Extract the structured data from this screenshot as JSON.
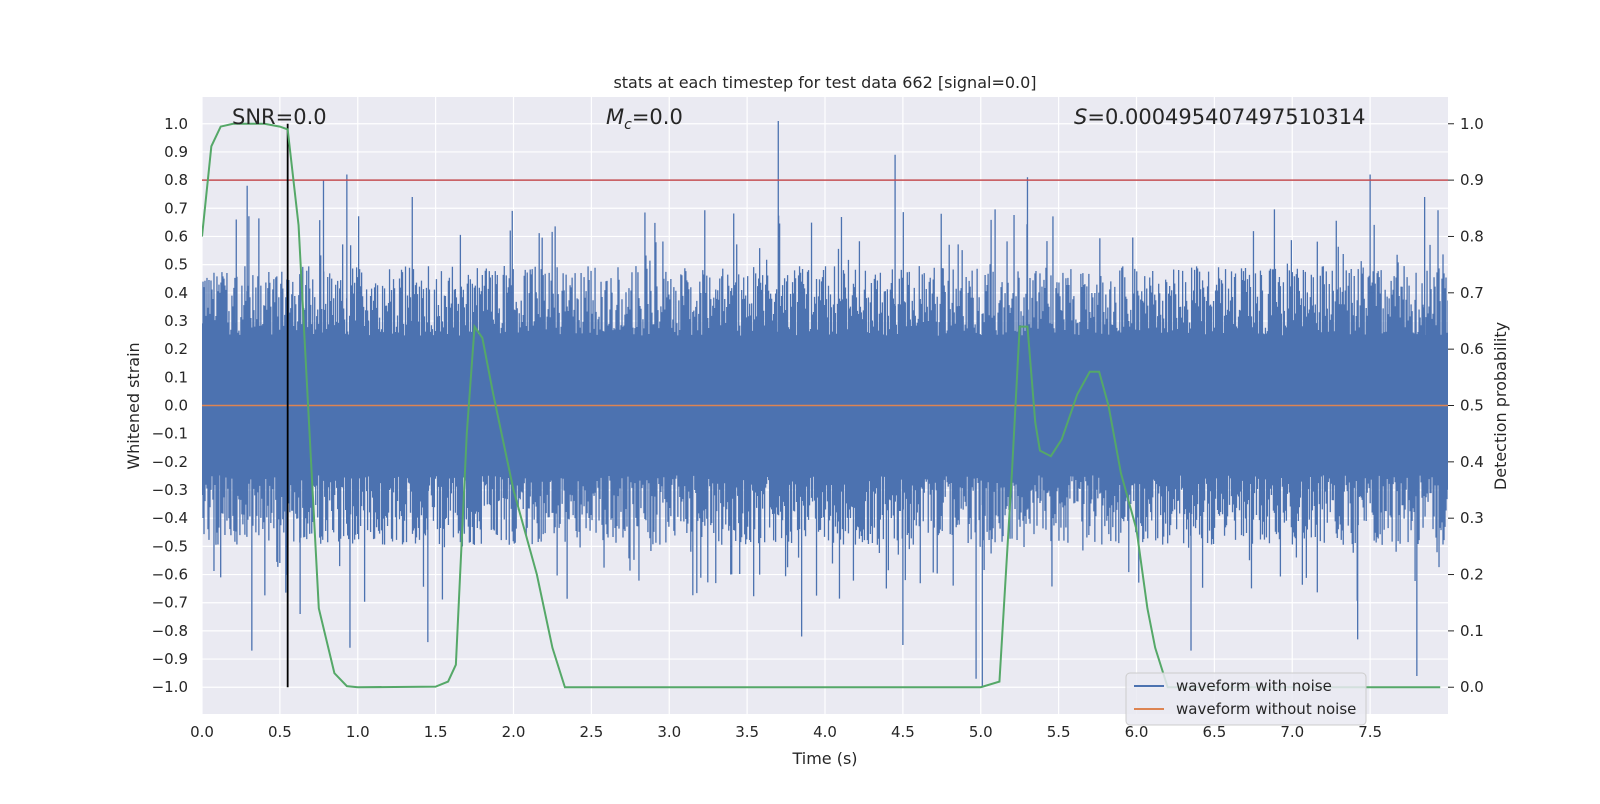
{
  "chart_data": {
    "type": "line",
    "title": "stats at each timestep for test data 662 [signal=0.0]",
    "xlabel": "Time (s)",
    "ylabel": "Whitened strain",
    "y2label": "Detection probability",
    "xlim": [
      0.0,
      8.0
    ],
    "ylim": [
      -1.095,
      1.095
    ],
    "y2lim": [
      -0.0475,
      1.0475
    ],
    "grid": true,
    "xticks": [
      0.0,
      0.5,
      1.0,
      1.5,
      2.0,
      2.5,
      3.0,
      3.5,
      4.0,
      4.5,
      5.0,
      5.5,
      6.0,
      6.5,
      7.0,
      7.5
    ],
    "xtick_labels": [
      "0.0",
      "0.5",
      "1.0",
      "1.5",
      "2.0",
      "2.5",
      "3.0",
      "3.5",
      "4.0",
      "4.5",
      "5.0",
      "5.5",
      "6.0",
      "6.5",
      "7.0",
      "7.5"
    ],
    "yticks": [
      1.0,
      0.9,
      0.8,
      0.7,
      0.6,
      0.5,
      0.4,
      0.3,
      0.2,
      0.1,
      0.0,
      -0.1,
      -0.2,
      -0.3,
      -0.4,
      -0.5,
      -0.6,
      -0.7,
      -0.8,
      -0.9,
      -1.0
    ],
    "ytick_labels": [
      "1.0",
      "0.9",
      "0.8",
      "0.7",
      "0.6",
      "0.5",
      "0.4",
      "0.3",
      "0.2",
      "0.1",
      "0.0",
      "−0.1",
      "−0.2",
      "−0.3",
      "−0.4",
      "−0.5",
      "−0.6",
      "−0.7",
      "−0.8",
      "−0.9",
      "−1.0"
    ],
    "y2ticks": [
      1.0,
      0.9,
      0.8,
      0.7,
      0.6,
      0.5,
      0.4,
      0.3,
      0.2,
      0.1,
      0.0
    ],
    "y2tick_labels": [
      "1.0",
      "0.9",
      "0.8",
      "0.7",
      "0.6",
      "0.5",
      "0.4",
      "0.3",
      "0.2",
      "0.1",
      "0.0"
    ],
    "annotations": {
      "snr": "SNR=0.0",
      "mc_symbol": "M",
      "mc_sub": "c",
      "mc_value": "=0.0",
      "s_symbol": "S",
      "s_value": "=0.000495407497510314"
    },
    "threshold_line": {
      "axis": "y2",
      "value": 0.9,
      "color": "#c44e52"
    },
    "marker_line": {
      "x": 0.55,
      "y_from": -1.0,
      "y_to": 1.0,
      "color": "#000000"
    },
    "series": [
      {
        "name": "waveform with noise",
        "axis": "y",
        "color": "#4c72b0",
        "kind": "noise",
        "x_range": [
          0.0,
          8.0
        ],
        "envelope_typical": 0.45,
        "notable_peaks": [
          {
            "x": 0.22,
            "y": 0.66
          },
          {
            "x": 0.29,
            "y": 0.78
          },
          {
            "x": 0.55,
            "y": 0.78
          },
          {
            "x": 0.78,
            "y": 0.8
          },
          {
            "x": 0.93,
            "y": 0.82
          },
          {
            "x": 1.35,
            "y": 0.74
          },
          {
            "x": 3.7,
            "y": 1.01
          },
          {
            "x": 4.45,
            "y": 0.89
          },
          {
            "x": 5.3,
            "y": 0.81
          },
          {
            "x": 7.5,
            "y": 0.82
          },
          {
            "x": 7.85,
            "y": 0.74
          }
        ],
        "notable_troughs": [
          {
            "x": 0.12,
            "y": -0.61
          },
          {
            "x": 0.32,
            "y": -0.87
          },
          {
            "x": 0.63,
            "y": -0.74
          },
          {
            "x": 0.95,
            "y": -0.86
          },
          {
            "x": 1.45,
            "y": -0.84
          },
          {
            "x": 3.85,
            "y": -0.82
          },
          {
            "x": 4.5,
            "y": -0.85
          },
          {
            "x": 4.97,
            "y": -0.97
          },
          {
            "x": 5.01,
            "y": -1.0
          },
          {
            "x": 6.35,
            "y": -0.87
          },
          {
            "x": 7.42,
            "y": -0.83
          },
          {
            "x": 7.8,
            "y": -0.96
          }
        ]
      },
      {
        "name": "waveform without noise",
        "axis": "y",
        "color": "#dd8452",
        "x": [
          0.0,
          8.0
        ],
        "values": [
          0.0,
          0.0
        ]
      },
      {
        "name": "detection probability",
        "axis": "y2",
        "color": "#55a868",
        "x": [
          0.0,
          0.06,
          0.12,
          0.2,
          0.3,
          0.4,
          0.5,
          0.55,
          0.62,
          0.75,
          0.85,
          0.93,
          1.0,
          1.5,
          1.58,
          1.63,
          1.7,
          1.75,
          1.8,
          1.87,
          2.0,
          2.15,
          2.25,
          2.33,
          3.0,
          4.0,
          5.0,
          5.12,
          5.2,
          5.25,
          5.3,
          5.35,
          5.38,
          5.45,
          5.52,
          5.57,
          5.62,
          5.7,
          5.76,
          5.82,
          5.9,
          6.0,
          6.07,
          6.12,
          6.2,
          7.0,
          7.95
        ],
        "values": [
          0.8,
          0.96,
          0.995,
          1.0,
          1.0,
          1.0,
          0.995,
          0.99,
          0.82,
          0.14,
          0.025,
          0.002,
          0.0,
          0.001,
          0.01,
          0.04,
          0.45,
          0.64,
          0.62,
          0.52,
          0.35,
          0.2,
          0.07,
          0.0,
          0.0,
          0.0,
          0.0,
          0.01,
          0.38,
          0.64,
          0.64,
          0.47,
          0.42,
          0.41,
          0.44,
          0.48,
          0.52,
          0.56,
          0.56,
          0.5,
          0.38,
          0.28,
          0.14,
          0.07,
          0.0,
          0.0,
          0.0
        ]
      }
    ],
    "legend": {
      "placement": "lower-right",
      "entries": [
        {
          "label": "waveform with noise",
          "color": "#4c72b0"
        },
        {
          "label": "waveform without noise",
          "color": "#dd8452"
        }
      ]
    }
  }
}
